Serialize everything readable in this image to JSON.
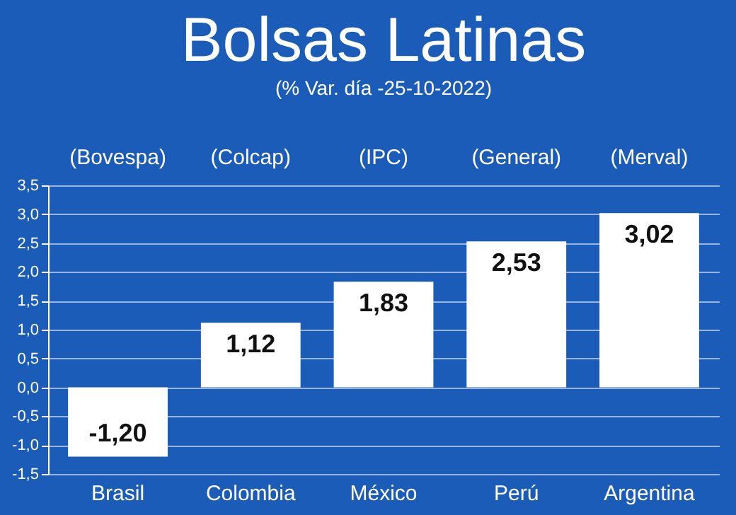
{
  "chart_data": {
    "type": "bar",
    "title": "Bolsas Latinas",
    "subtitle": "(% Var. día -25-10-2022)",
    "categories": [
      "Brasil",
      "Colombia",
      "México",
      "Perú",
      "Argentina"
    ],
    "values": [
      -1.2,
      1.12,
      1.83,
      2.53,
      3.02
    ],
    "value_labels": [
      "-1,20",
      "1,12",
      "1,83",
      "2,53",
      "3,02"
    ],
    "color": "#ffffff",
    "annotations": [
      "(Bovespa)",
      "(Colcap)",
      "(IPC)",
      "(General)",
      "(Merval)"
    ],
    "ylim": [
      -1.5,
      3.5
    ],
    "yticks": [
      {
        "value": -1.5,
        "label": "-1,5"
      },
      {
        "value": -1.0,
        "label": "-1,0"
      },
      {
        "value": -0.5,
        "label": "-0,5"
      },
      {
        "value": 0,
        "label": "0,0"
      },
      {
        "value": 0.5,
        "label": "0,5"
      },
      {
        "value": 1.0,
        "label": "1,0"
      },
      {
        "value": 1.5,
        "label": "1,5"
      },
      {
        "value": 2.0,
        "label": "2,0"
      },
      {
        "value": 2.5,
        "label": "2,5"
      },
      {
        "value": 3.0,
        "label": "3,0"
      },
      {
        "value": 3.5,
        "label": "3,5"
      }
    ],
    "grid": "y"
  }
}
